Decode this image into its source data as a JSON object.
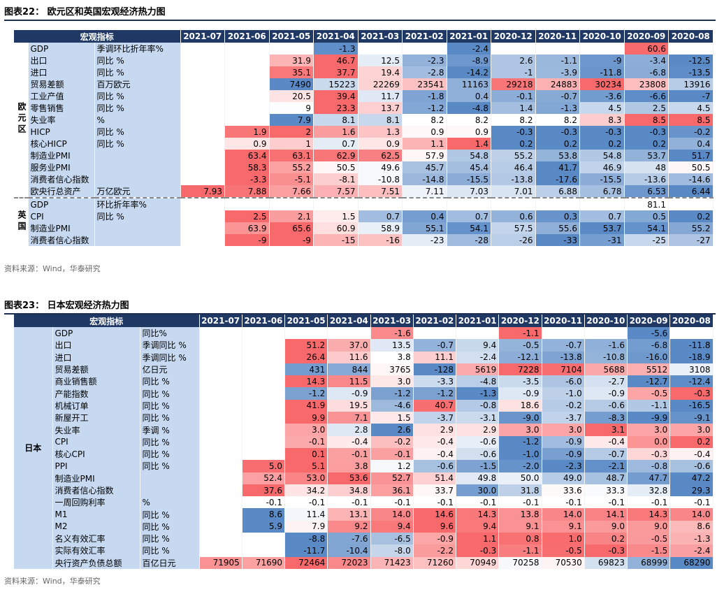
{
  "fig22": {
    "title": "图表22： 欧元区和英国宏观经济热力图",
    "header": "宏观指标",
    "columns": [
      "2021-07",
      "2021-06",
      "2021-05",
      "2021-04",
      "2021-03",
      "2021-02",
      "2021-01",
      "2020-12",
      "2020-11",
      "2020-10",
      "2020-09",
      "2020-08"
    ],
    "groups": [
      {
        "label": "欧元区",
        "rows": [
          {
            "name": "GDP",
            "unit": "季调环比折年率%",
            "values": [
              null,
              null,
              null,
              "-1.3",
              null,
              null,
              "-2.4",
              null,
              null,
              null,
              "60.6",
              null
            ]
          },
          {
            "name": "出口",
            "unit": "同比 %",
            "values": [
              null,
              null,
              "31.9",
              "46.7",
              "12.5",
              "-2.3",
              "-8.9",
              "2.6",
              "-1.1",
              "-9",
              "-3.4",
              "-12.5"
            ]
          },
          {
            "name": "进口",
            "unit": "同比 %",
            "values": [
              null,
              null,
              "35.1",
              "37.7",
              "19.4",
              "-2.8",
              "-14.2",
              "-1",
              "-3.9",
              "-11.8",
              "-6.8",
              "-13.5"
            ]
          },
          {
            "name": "贸易差额",
            "unit": "百万欧元",
            "values": [
              null,
              null,
              "7490",
              "15223",
              "22269",
              "23541",
              "11163",
              "29218",
              "24883",
              "30234",
              "23808",
              "13916"
            ]
          },
          {
            "name": "工业产值",
            "unit": "同比 %",
            "values": [
              null,
              null,
              "20.5",
              "39.4",
              "11.7",
              "-1.8",
              "0.4",
              "-0.1",
              "-0.7",
              "-3.6",
              "-6.6",
              "-7"
            ]
          },
          {
            "name": "零售销售",
            "unit": "同比 %",
            "values": [
              null,
              null,
              "9",
              "23.3",
              "13.7",
              "-1.2",
              "-4.8",
              "1.4",
              "-1.3",
              "4.5",
              "2.5",
              "4.5"
            ]
          },
          {
            "name": "失业率",
            "unit": "%",
            "values": [
              null,
              null,
              "7.9",
              "8.1",
              "8.1",
              "8.2",
              "8.2",
              "8.2",
              "8.2",
              "8.3",
              "8.5",
              "8.5"
            ]
          },
          {
            "name": "HICP",
            "unit": "同比 %",
            "values": [
              null,
              "1.9",
              "2",
              "1.6",
              "1.3",
              "0.9",
              "0.9",
              "-0.3",
              "-0.3",
              "-0.3",
              "-0.3",
              "-0.2"
            ]
          },
          {
            "name": "核心HICP",
            "unit": "同比 %",
            "values": [
              null,
              "0.9",
              "1",
              "0.7",
              "0.9",
              "1.1",
              "1.4",
              "0.2",
              "0.2",
              "0.2",
              "0.2",
              "0.4"
            ]
          },
          {
            "name": "制造业PMI",
            "values": [
              null,
              "63.4",
              "63.1",
              "62.9",
              "62.5",
              "57.9",
              "54.8",
              "55.2",
              "53.8",
              "54.8",
              "53.7",
              "51.7"
            ]
          },
          {
            "name": "服务业PMI",
            "values": [
              null,
              "58.3",
              "55.2",
              "50.5",
              "49.6",
              "45.7",
              "45.4",
              "46.4",
              "41.7",
              "46.9",
              "48",
              "50.5"
            ]
          },
          {
            "name": "消费者信心指数",
            "values": [
              null,
              "-3.3",
              "-5.1",
              "-8.1",
              "-10.8",
              "-14.8",
              "-15.5",
              "-13.8",
              "-17.6",
              "-15.5",
              "-13.6",
              "-14.6"
            ]
          },
          {
            "name": "欧央行总资产",
            "unit": "万亿欧元",
            "values": [
              "7.93",
              "7.88",
              "7.66",
              "7.57",
              "7.51",
              "7.11",
              "7.03",
              "7.01",
              "6.88",
              "6.78",
              "6.53",
              "6.44"
            ]
          }
        ]
      },
      {
        "label": "英国",
        "rows": [
          {
            "name": "GDP",
            "unit": "环比折年率%",
            "values": [
              null,
              null,
              null,
              null,
              null,
              null,
              null,
              null,
              null,
              null,
              "81.1",
              null
            ]
          },
          {
            "name": "CPI",
            "unit": "同比 %",
            "values": [
              null,
              "2.5",
              "2.1",
              "1.5",
              "0.7",
              "0.4",
              "0.7",
              "0.6",
              "0.3",
              "0.7",
              "0.5",
              "0.2"
            ]
          },
          {
            "name": "制造业PMI",
            "values": [
              null,
              "63.9",
              "65.6",
              "60.9",
              "58.9",
              "55.1",
              "54.1",
              "57.5",
              "55.6",
              "53.7",
              "54.1",
              "55.2"
            ]
          },
          {
            "name": "消费者信心指数",
            "values": [
              null,
              "-9",
              "-9",
              "-15",
              "-16",
              "-23",
              "-28",
              "-26",
              "-33",
              "-31",
              "-25",
              "-27"
            ]
          }
        ]
      }
    ],
    "source": "资料来源：Wind，华泰研究"
  },
  "fig23": {
    "title": "图表23： 日本宏观经济热力图",
    "header": "宏观指标",
    "columns": [
      "2021-07",
      "2021-06",
      "2021-05",
      "2021-04",
      "2021-03",
      "2021-02",
      "2021-01",
      "2020-12",
      "2020-11",
      "2020-10",
      "2020-09",
      "2020-08"
    ],
    "groups": [
      {
        "label": "日本",
        "rows": [
          {
            "name": "GDP",
            "unit": "同比%",
            "values": [
              null,
              null,
              null,
              null,
              "-1.6",
              null,
              null,
              "-1.1",
              null,
              null,
              "-5.6",
              null
            ]
          },
          {
            "name": "出口",
            "unit": "季调同比 %",
            "values": [
              null,
              null,
              "51.2",
              "37.0",
              "13.5",
              "-0.7",
              "9.4",
              "-0.5",
              "-0.7",
              "-1.6",
              "-6.8",
              "-11.8"
            ]
          },
          {
            "name": "进口",
            "unit": "季调同比 %",
            "values": [
              null,
              null,
              "26.4",
              "11.6",
              "3.8",
              "11.1",
              "-2.4",
              "-12.1",
              "-13.8",
              "-10.8",
              "-16.0",
              "-18.9"
            ]
          },
          {
            "name": "贸易差额",
            "unit": "亿日元",
            "values": [
              null,
              null,
              "431",
              "844",
              "3765",
              "-128",
              "5619",
              "7228",
              "7104",
              "5688",
              "5512",
              "3108"
            ]
          },
          {
            "name": "商业销售额",
            "unit": "同比 %",
            "values": [
              null,
              null,
              "14.3",
              "11.5",
              "3.0",
              "-3.3",
              "-4.8",
              "-3.5",
              "-6.0",
              "-2.7",
              "-12.7",
              "-12.4"
            ]
          },
          {
            "name": "产能指数",
            "unit": "同比 %",
            "values": [
              null,
              null,
              "-1.2",
              "-0.9",
              "-1.2",
              "-1.2",
              "-1.3",
              "-0.9",
              "-1.0",
              "-0.9",
              "-0.5",
              "-0.3"
            ]
          },
          {
            "name": "机械订单",
            "unit": "同比 %",
            "values": [
              null,
              null,
              "41.9",
              "19.5",
              "-4.6",
              "40.7",
              "-0.8",
              "18.6",
              "-0.2",
              "-0.6",
              "-1.1",
              "-16.5"
            ]
          },
          {
            "name": "新屋开工",
            "unit": "同比 %",
            "values": [
              null,
              null,
              "9.9",
              "7.1",
              "1.5",
              "-3.7",
              "-3.1",
              "-9.0",
              "-3.7",
              "-8.3",
              "-9.9",
              "-9.1"
            ]
          },
          {
            "name": "失业率",
            "unit": "季调 %",
            "values": [
              null,
              null,
              "3.0",
              "2.8",
              "2.6",
              "2.9",
              "2.9",
              "3.0",
              "3.0",
              "3.1",
              "3.0",
              "3.0"
            ]
          },
          {
            "name": "CPI",
            "unit": "同比 %",
            "values": [
              null,
              null,
              "-0.1",
              "-0.4",
              "-0.2",
              "-0.4",
              "-0.6",
              "-1.2",
              "-0.9",
              "-0.4",
              "0.0",
              "0.2"
            ]
          },
          {
            "name": "核心CPI",
            "unit": "同比 %",
            "values": [
              null,
              null,
              "0.1",
              "-0.1",
              "-0.1",
              "-0.4",
              "-0.6",
              "-1.0",
              "-0.9",
              "-0.7",
              "-0.3",
              "-0.4"
            ]
          },
          {
            "name": "PPI",
            "unit": "同比 %",
            "values": [
              null,
              "5.0",
              "5.1",
              "3.8",
              "1.2",
              "-0.6",
              "-1.5",
              "-2.0",
              "-2.3",
              "-2.1",
              "-0.8",
              "-0.6"
            ]
          },
          {
            "name": "制造业PMI",
            "values": [
              null,
              "52.4",
              "53.0",
              "53.6",
              "52.7",
              "51.4",
              "49.8",
              "50.0",
              "49.0",
              "48.7",
              "47.7",
              "47.2"
            ]
          },
          {
            "name": "消费者信心指数",
            "values": [
              null,
              "37.6",
              "34.2",
              "34.8",
              "36.1",
              "33.7",
              "30.0",
              "31.8",
              "33.6",
              "33.3",
              "32.8",
              "29.3"
            ]
          },
          {
            "name": "一周回购利率",
            "unit": "%",
            "values": [
              null,
              "-0.1",
              "-0.1",
              "-0.1",
              "-0.1",
              "-0.1",
              "-0.1",
              "-0.1",
              "-0.1",
              "-0.1",
              "-0.1",
              "-0.1"
            ]
          },
          {
            "name": "M1",
            "unit": "同比 %",
            "values": [
              null,
              "8.6",
              "11.4",
              "13.1",
              "14.0",
              "14.6",
              "14.3",
              "13.8",
              "14.0",
              "14.1",
              "14.3",
              "14.0"
            ]
          },
          {
            "name": "M2",
            "unit": "同比 %",
            "values": [
              null,
              "5.9",
              "7.9",
              "9.2",
              "9.4",
              "9.6",
              "9.4",
              "9.1",
              "9.1",
              "9.0",
              "9.0",
              "8.6"
            ]
          },
          {
            "name": "名义有效汇率",
            "unit": "同比 %",
            "values": [
              null,
              null,
              "-8.8",
              "-7.6",
              "-6.5",
              "-0.9",
              "1.1",
              "0.8",
              "1.0",
              "0.2",
              "-0.5",
              "-1.3"
            ]
          },
          {
            "name": "实际有效汇率",
            "unit": "同比 %",
            "values": [
              null,
              null,
              "-11.7",
              "-10.4",
              "-8.0",
              "-2.2",
              "-0.3",
              "-1.1",
              "-0.5",
              "-0.3",
              "-1.5",
              "-2.4"
            ]
          },
          {
            "name": "央行资产负债总额",
            "unit": "百亿日元",
            "values": [
              "71905",
              "71690",
              "72464",
              "72023",
              "71423",
              "71260",
              "70949",
              "70258",
              "70530",
              "69823",
              "68999",
              "68290"
            ]
          }
        ]
      }
    ],
    "source": "资料来源：Wind，华泰研究"
  }
}
